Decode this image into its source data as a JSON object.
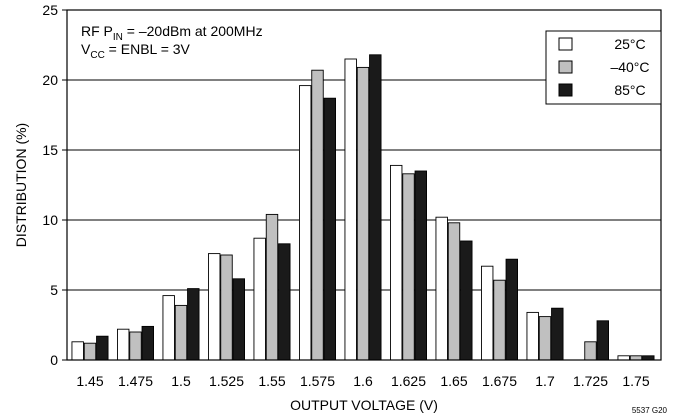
{
  "chart_data": {
    "type": "bar",
    "xlabel": "OUTPUT VOLTAGE (V)",
    "ylabel": "DISTRIBUTION (%)",
    "ylim": [
      0,
      25
    ],
    "yticks": [
      0,
      5,
      10,
      15,
      20,
      25
    ],
    "grid": "horizontal",
    "legend_position": "top-right",
    "categories": [
      "1.45",
      "1.475",
      "1.5",
      "1.525",
      "1.55",
      "1.575",
      "1.6",
      "1.625",
      "1.65",
      "1.675",
      "1.7",
      "1.725",
      "1.75"
    ],
    "series": [
      {
        "name": "25°C",
        "fill": "#ffffff",
        "values": [
          1.3,
          2.2,
          4.6,
          7.6,
          8.7,
          19.6,
          21.5,
          13.9,
          10.2,
          6.7,
          3.4,
          0,
          0.3
        ]
      },
      {
        "name": "–40°C",
        "fill": "#c0c0c0",
        "values": [
          1.2,
          2.0,
          3.9,
          7.5,
          10.4,
          20.7,
          20.9,
          13.3,
          9.8,
          5.7,
          3.1,
          1.3,
          0.3
        ]
      },
      {
        "name": "85°C",
        "fill": "#1a1a1a",
        "values": [
          1.7,
          2.4,
          5.1,
          5.8,
          8.3,
          18.7,
          21.8,
          13.5,
          8.5,
          7.2,
          3.7,
          2.8,
          0.3
        ]
      }
    ],
    "annotations": {
      "line1_prefix": "RF P",
      "line1_sub": "IN",
      "line1_suffix": " = –20dBm at 200MHz",
      "line2_prefix": "V",
      "line2_sub": "CC",
      "line2_suffix": " = ENBL = 3V"
    },
    "figure_id": "5537 G20"
  }
}
